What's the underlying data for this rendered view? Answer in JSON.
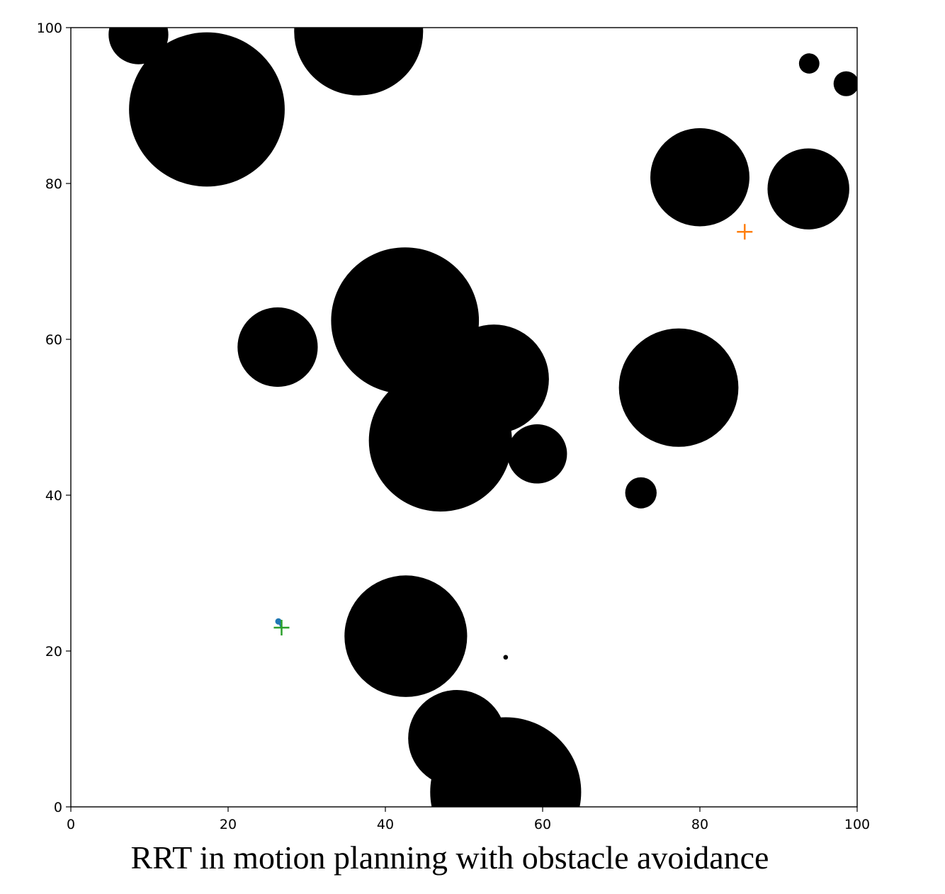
{
  "caption": "RRT in motion planning with obstacle avoidance",
  "chart_data": {
    "type": "scatter",
    "title": "",
    "xlabel": "",
    "ylabel": "",
    "xlim": [
      0,
      100
    ],
    "ylim": [
      0,
      100
    ],
    "xticks": [
      "0",
      "20",
      "40",
      "60",
      "80",
      "100"
    ],
    "yticks": [
      "0",
      "20",
      "40",
      "60",
      "80",
      "100"
    ],
    "grid": false,
    "obstacles": [
      {
        "x": 8.6,
        "y": 99.1,
        "r": 3.8
      },
      {
        "x": 17.3,
        "y": 89.5,
        "r": 9.9
      },
      {
        "x": 36.6,
        "y": 99.5,
        "r": 8.2
      },
      {
        "x": 93.9,
        "y": 95.4,
        "r": 1.3
      },
      {
        "x": 98.6,
        "y": 92.8,
        "r": 1.6
      },
      {
        "x": 80.0,
        "y": 80.8,
        "r": 6.3
      },
      {
        "x": 93.8,
        "y": 79.3,
        "r": 5.2
      },
      {
        "x": 26.3,
        "y": 59.0,
        "r": 5.1
      },
      {
        "x": 42.5,
        "y": 62.4,
        "r": 9.4
      },
      {
        "x": 53.8,
        "y": 54.9,
        "r": 7.0
      },
      {
        "x": 77.3,
        "y": 53.8,
        "r": 7.6
      },
      {
        "x": 47.0,
        "y": 47.0,
        "r": 9.1
      },
      {
        "x": 59.3,
        "y": 45.3,
        "r": 3.8
      },
      {
        "x": 72.5,
        "y": 40.3,
        "r": 2.0
      },
      {
        "x": 42.6,
        "y": 21.9,
        "r": 7.8
      },
      {
        "x": 55.3,
        "y": 19.2,
        "r": 0.3
      },
      {
        "x": 49.1,
        "y": 8.8,
        "r": 6.2
      },
      {
        "x": 55.3,
        "y": 1.9,
        "r": 9.6
      }
    ],
    "start": {
      "x": 26.8,
      "y": 23.0,
      "marker": "+",
      "color": "#2ca02c"
    },
    "tree_node": {
      "x": 26.4,
      "y": 23.8,
      "color": "#1f77b4"
    },
    "goal": {
      "x": 85.7,
      "y": 73.8,
      "marker": "+",
      "color": "#ff7f0e"
    }
  }
}
